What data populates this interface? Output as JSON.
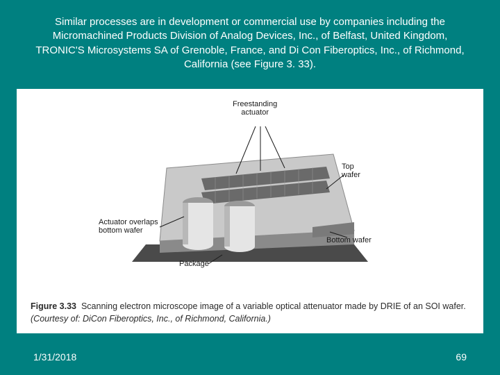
{
  "header": {
    "text": "Similar processes are in development or commercial use by companies including the Micromachined Products Division of Analog Devices, Inc., of Belfast, United Kingdom, TRONIC'S Microsystems SA of Grenoble, France, and Di Con Fiberoptics, Inc., of Richmond, California (see Figure 3. 33)."
  },
  "figure": {
    "labels": {
      "freestanding_actuator": "Freestanding\nactuator",
      "top_wafer": "Top\nwafer",
      "bottom_wafer": "Bottom wafer",
      "actuator_overlaps": "Actuator overlaps\nbottom wafer",
      "package": "Package"
    },
    "caption_bold": "Figure 3.33",
    "caption_text": "Scanning electron microscope image of a variable optical attenuator made by DRIE of an SOI wafer.",
    "caption_italic": "(Courtesy of: DiCon Fiberoptics, Inc., of Richmond, California.)",
    "diagram": {
      "type": "infographic",
      "background_color": "#ffffff",
      "device_body_color": "#c9c9c9",
      "device_shadow_color": "#8a8a8a",
      "actuator_bar_color": "#6a6a6a",
      "cylinder_color": "#e5e5e5",
      "cylinder_shadow_color": "#9a9a9a",
      "package_base_color": "#4a4a4a",
      "arrow_color": "#1a1a1a",
      "label_fontsize": 11,
      "label_color": "#1a1a1a"
    }
  },
  "footer": {
    "date": "1/31/2018",
    "page": "69"
  },
  "colors": {
    "slide_bg": "#008080",
    "text_light": "#ffffff",
    "figure_bg": "#ffffff",
    "caption_text": "#2a2a2a"
  }
}
